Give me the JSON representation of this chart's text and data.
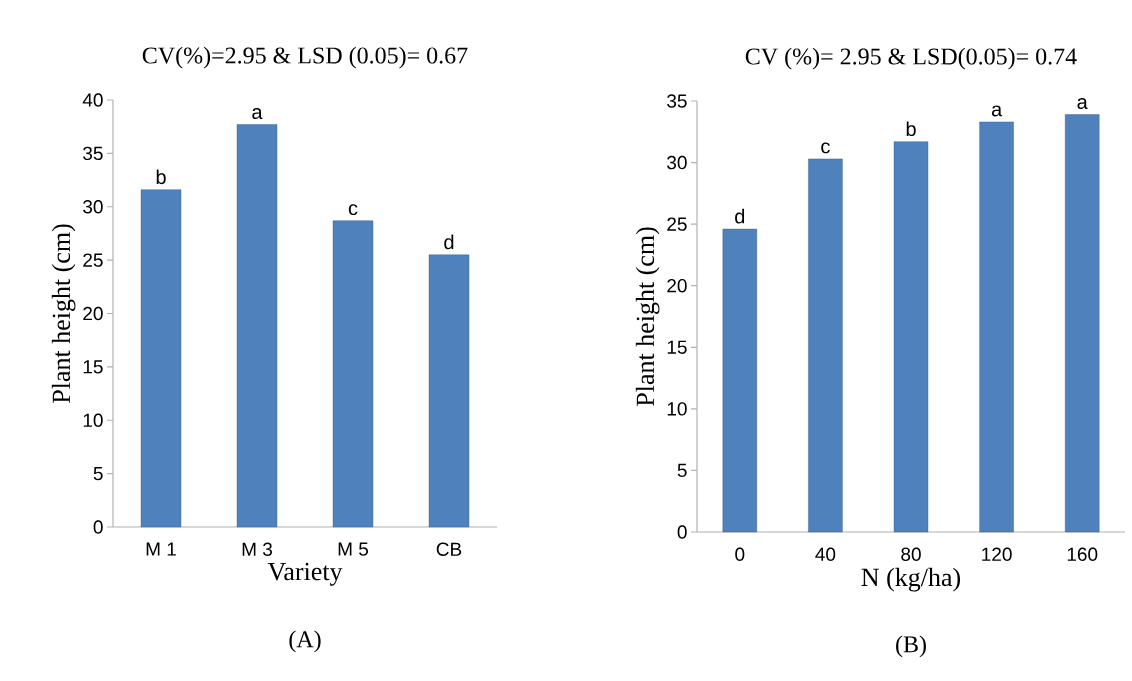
{
  "chart_data": [
    {
      "type": "bar",
      "title": "CV(%)=2.95 & LSD (0.05)= 0.67",
      "xlabel": "Variety",
      "ylabel": "Plant height (cm)",
      "categories": [
        "M 1",
        "M 3",
        "M 5",
        "CB"
      ],
      "values": [
        31.6,
        37.7,
        28.7,
        25.5
      ],
      "value_labels": [
        "b",
        "a",
        "c",
        "d"
      ],
      "color": "#4f81bd",
      "ylim": [
        0,
        40
      ],
      "yticks": [
        0,
        5,
        10,
        15,
        20,
        25,
        30,
        35,
        40
      ],
      "annotations": [
        "(A)"
      ]
    },
    {
      "type": "bar",
      "title": "CV (%)= 2.95 & LSD(0.05)= 0.74",
      "xlabel": "N (kg/ha)",
      "ylabel": "Plant height (cm)",
      "categories": [
        "0",
        "40",
        "80",
        "120",
        "160"
      ],
      "values": [
        24.6,
        30.3,
        31.7,
        33.3,
        33.9
      ],
      "value_labels": [
        "d",
        "c",
        "b",
        "a",
        "a"
      ],
      "color": "#4f81bd",
      "ylim": [
        0,
        35
      ],
      "yticks": [
        0,
        5,
        10,
        15,
        20,
        25,
        30,
        35
      ],
      "annotations": [
        "(B)"
      ]
    }
  ]
}
